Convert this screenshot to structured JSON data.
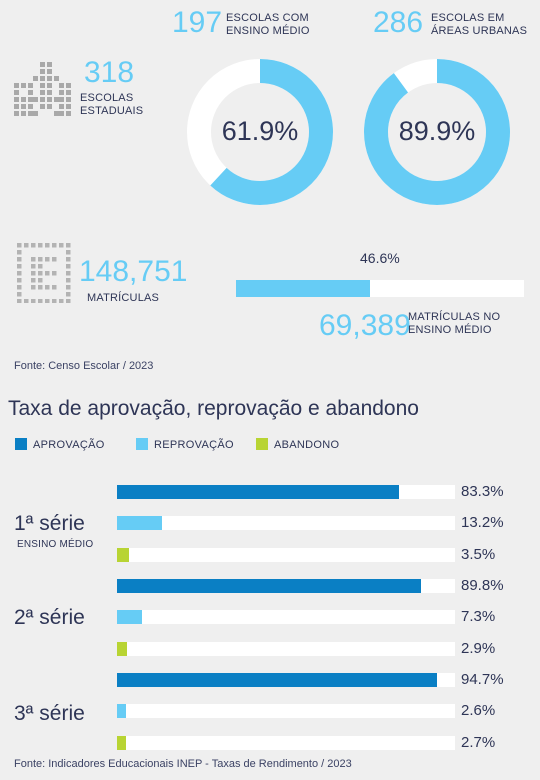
{
  "summary": {
    "escolas_estaduais": {
      "value": "318",
      "label_line1": "ESCOLAS",
      "label_line2": "ESTADUAIS"
    },
    "ensino_medio": {
      "value": "197",
      "label_line1": "ESCOLAS COM",
      "label_line2": "ENSINO MÉDIO",
      "percent_label": "61.9%",
      "percent": 61.9
    },
    "areas_urbanas": {
      "value": "286",
      "label_line1": "ESCOLAS EM",
      "label_line2": "ÁREAS URBANAS",
      "percent_label": "89.9%",
      "percent": 89.9
    },
    "matriculas": {
      "value": "148,751",
      "label": "MATRÍCULAS"
    },
    "matriculas_em": {
      "value": "69,389",
      "label_line1": "MATRÍCULAS NO",
      "label_line2": "ENSINO MÉDIO",
      "percent_label": "46.6%",
      "percent": 46.6
    },
    "source": "Fonte: Censo Escolar / 2023"
  },
  "colors": {
    "aprovacao": "#0a7fc4",
    "reprovacao": "#66ccf5",
    "abandono": "#b8d433",
    "track": "#ffffff",
    "text": "#2e3556"
  },
  "icons": {
    "school": "school-building-icon",
    "students": "students-grid-icon"
  },
  "chart_data": {
    "type": "bar",
    "orientation": "horizontal",
    "title": "Taxa de aprovação, reprovação e abandono",
    "legend": [
      "APROVAÇÃO",
      "REPROVAÇÃO",
      "ABANDONO"
    ],
    "legend_position": "top-left",
    "xlim": [
      0,
      100
    ],
    "groups": [
      {
        "label": "1ª série",
        "sublabel": "ENSINO MÉDIO",
        "bars": [
          {
            "series": "APROVAÇÃO",
            "value": 83.3,
            "label": "83.3%"
          },
          {
            "series": "REPROVAÇÃO",
            "value": 13.2,
            "label": "13.2%"
          },
          {
            "series": "ABANDONO",
            "value": 3.5,
            "label": "3.5%"
          }
        ]
      },
      {
        "label": "2ª série",
        "sublabel": "",
        "bars": [
          {
            "series": "APROVAÇÃO",
            "value": 89.8,
            "label": "89.8%"
          },
          {
            "series": "REPROVAÇÃO",
            "value": 7.3,
            "label": "7.3%"
          },
          {
            "series": "ABANDONO",
            "value": 2.9,
            "label": "2.9%"
          }
        ]
      },
      {
        "label": "3ª série",
        "sublabel": "",
        "bars": [
          {
            "series": "APROVAÇÃO",
            "value": 94.7,
            "label": "94.7%"
          },
          {
            "series": "REPROVAÇÃO",
            "value": 2.6,
            "label": "2.6%"
          },
          {
            "series": "ABANDONO",
            "value": 2.7,
            "label": "2.7%"
          }
        ]
      }
    ],
    "source": "Fonte: Indicadores Educacionais INEP - Taxas de Rendimento / 2023"
  }
}
